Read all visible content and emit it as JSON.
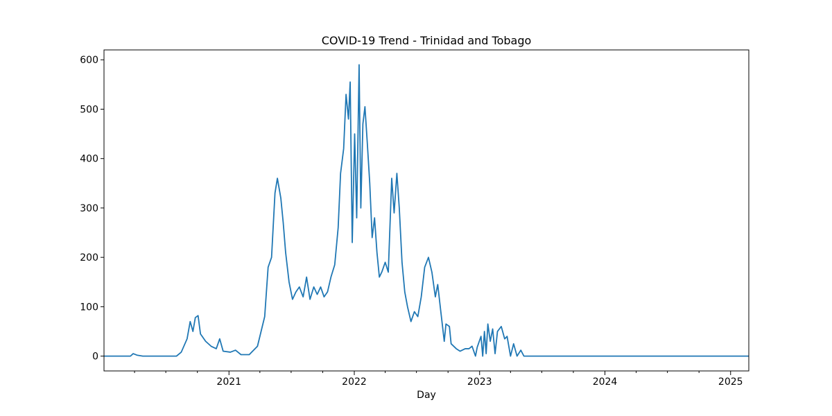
{
  "chart_data": {
    "type": "line",
    "title": "COVID-19 Trend - Trinidad and Tobago",
    "xlabel": "Day",
    "ylabel": "",
    "xlim": [
      "2020-01-03",
      "2025-02-23"
    ],
    "ylim": [
      -30,
      620
    ],
    "x_ticks": [
      {
        "label": "2021",
        "date": "2021-01-01"
      },
      {
        "label": "2022",
        "date": "2022-01-01"
      },
      {
        "label": "2023",
        "date": "2023-01-01"
      },
      {
        "label": "2024",
        "date": "2024-01-01"
      },
      {
        "label": "2025",
        "date": "2025-01-01"
      }
    ],
    "y_ticks": [
      0,
      100,
      200,
      300,
      400,
      500,
      600
    ],
    "grid": false,
    "legend": "none",
    "colors": {
      "line": "#1f77b4",
      "axes": "#000000",
      "background": "#ffffff"
    },
    "series": [
      {
        "points": [
          [
            "2020-01-03",
            0
          ],
          [
            "2020-03-20",
            0
          ],
          [
            "2020-03-28",
            5
          ],
          [
            "2020-04-08",
            2
          ],
          [
            "2020-04-25",
            0
          ],
          [
            "2020-08-01",
            0
          ],
          [
            "2020-08-15",
            8
          ],
          [
            "2020-09-01",
            35
          ],
          [
            "2020-09-10",
            70
          ],
          [
            "2020-09-18",
            50
          ],
          [
            "2020-09-25",
            78
          ],
          [
            "2020-10-03",
            82
          ],
          [
            "2020-10-10",
            45
          ],
          [
            "2020-10-25",
            30
          ],
          [
            "2020-11-10",
            20
          ],
          [
            "2020-11-25",
            15
          ],
          [
            "2020-12-05",
            35
          ],
          [
            "2020-12-15",
            10
          ],
          [
            "2021-01-05",
            8
          ],
          [
            "2021-01-20",
            12
          ],
          [
            "2021-02-05",
            3
          ],
          [
            "2021-03-01",
            3
          ],
          [
            "2021-03-25",
            20
          ],
          [
            "2021-04-15",
            80
          ],
          [
            "2021-04-25",
            180
          ],
          [
            "2021-05-05",
            200
          ],
          [
            "2021-05-15",
            330
          ],
          [
            "2021-05-22",
            360
          ],
          [
            "2021-06-01",
            320
          ],
          [
            "2021-06-08",
            270
          ],
          [
            "2021-06-15",
            210
          ],
          [
            "2021-06-25",
            150
          ],
          [
            "2021-07-05",
            115
          ],
          [
            "2021-07-15",
            130
          ],
          [
            "2021-07-25",
            140
          ],
          [
            "2021-08-05",
            120
          ],
          [
            "2021-08-15",
            160
          ],
          [
            "2021-08-25",
            115
          ],
          [
            "2021-09-05",
            140
          ],
          [
            "2021-09-15",
            125
          ],
          [
            "2021-09-25",
            140
          ],
          [
            "2021-10-05",
            120
          ],
          [
            "2021-10-15",
            130
          ],
          [
            "2021-10-25",
            160
          ],
          [
            "2021-11-05",
            185
          ],
          [
            "2021-11-15",
            260
          ],
          [
            "2021-11-22",
            370
          ],
          [
            "2021-12-01",
            420
          ],
          [
            "2021-12-08",
            530
          ],
          [
            "2021-12-15",
            480
          ],
          [
            "2021-12-20",
            555
          ],
          [
            "2021-12-26",
            230
          ],
          [
            "2022-01-02",
            450
          ],
          [
            "2022-01-08",
            280
          ],
          [
            "2022-01-15",
            590
          ],
          [
            "2022-01-20",
            300
          ],
          [
            "2022-01-26",
            470
          ],
          [
            "2022-02-01",
            505
          ],
          [
            "2022-02-08",
            430
          ],
          [
            "2022-02-15",
            350
          ],
          [
            "2022-02-22",
            240
          ],
          [
            "2022-03-01",
            280
          ],
          [
            "2022-03-08",
            210
          ],
          [
            "2022-03-15",
            160
          ],
          [
            "2022-03-22",
            170
          ],
          [
            "2022-04-01",
            190
          ],
          [
            "2022-04-10",
            170
          ],
          [
            "2022-04-20",
            360
          ],
          [
            "2022-04-27",
            290
          ],
          [
            "2022-05-05",
            370
          ],
          [
            "2022-05-12",
            300
          ],
          [
            "2022-05-20",
            190
          ],
          [
            "2022-05-28",
            130
          ],
          [
            "2022-06-05",
            100
          ],
          [
            "2022-06-15",
            70
          ],
          [
            "2022-06-25",
            90
          ],
          [
            "2022-07-05",
            80
          ],
          [
            "2022-07-15",
            120
          ],
          [
            "2022-07-25",
            180
          ],
          [
            "2022-08-05",
            200
          ],
          [
            "2022-08-15",
            170
          ],
          [
            "2022-08-25",
            120
          ],
          [
            "2022-09-01",
            145
          ],
          [
            "2022-09-10",
            90
          ],
          [
            "2022-09-20",
            30
          ],
          [
            "2022-09-25",
            65
          ],
          [
            "2022-10-05",
            60
          ],
          [
            "2022-10-10",
            25
          ],
          [
            "2022-10-25",
            15
          ],
          [
            "2022-11-05",
            10
          ],
          [
            "2022-11-20",
            15
          ],
          [
            "2022-12-01",
            15
          ],
          [
            "2022-12-10",
            20
          ],
          [
            "2022-12-20",
            0
          ],
          [
            "2022-12-25",
            18
          ],
          [
            "2023-01-05",
            40
          ],
          [
            "2023-01-10",
            0
          ],
          [
            "2023-01-15",
            50
          ],
          [
            "2023-01-20",
            5
          ],
          [
            "2023-01-25",
            65
          ],
          [
            "2023-02-01",
            30
          ],
          [
            "2023-02-08",
            55
          ],
          [
            "2023-02-15",
            5
          ],
          [
            "2023-02-22",
            50
          ],
          [
            "2023-03-05",
            60
          ],
          [
            "2023-03-15",
            35
          ],
          [
            "2023-03-22",
            40
          ],
          [
            "2023-04-01",
            0
          ],
          [
            "2023-04-10",
            25
          ],
          [
            "2023-04-20",
            0
          ],
          [
            "2023-05-01",
            12
          ],
          [
            "2023-05-10",
            0
          ],
          [
            "2025-02-23",
            0
          ]
        ]
      }
    ]
  }
}
